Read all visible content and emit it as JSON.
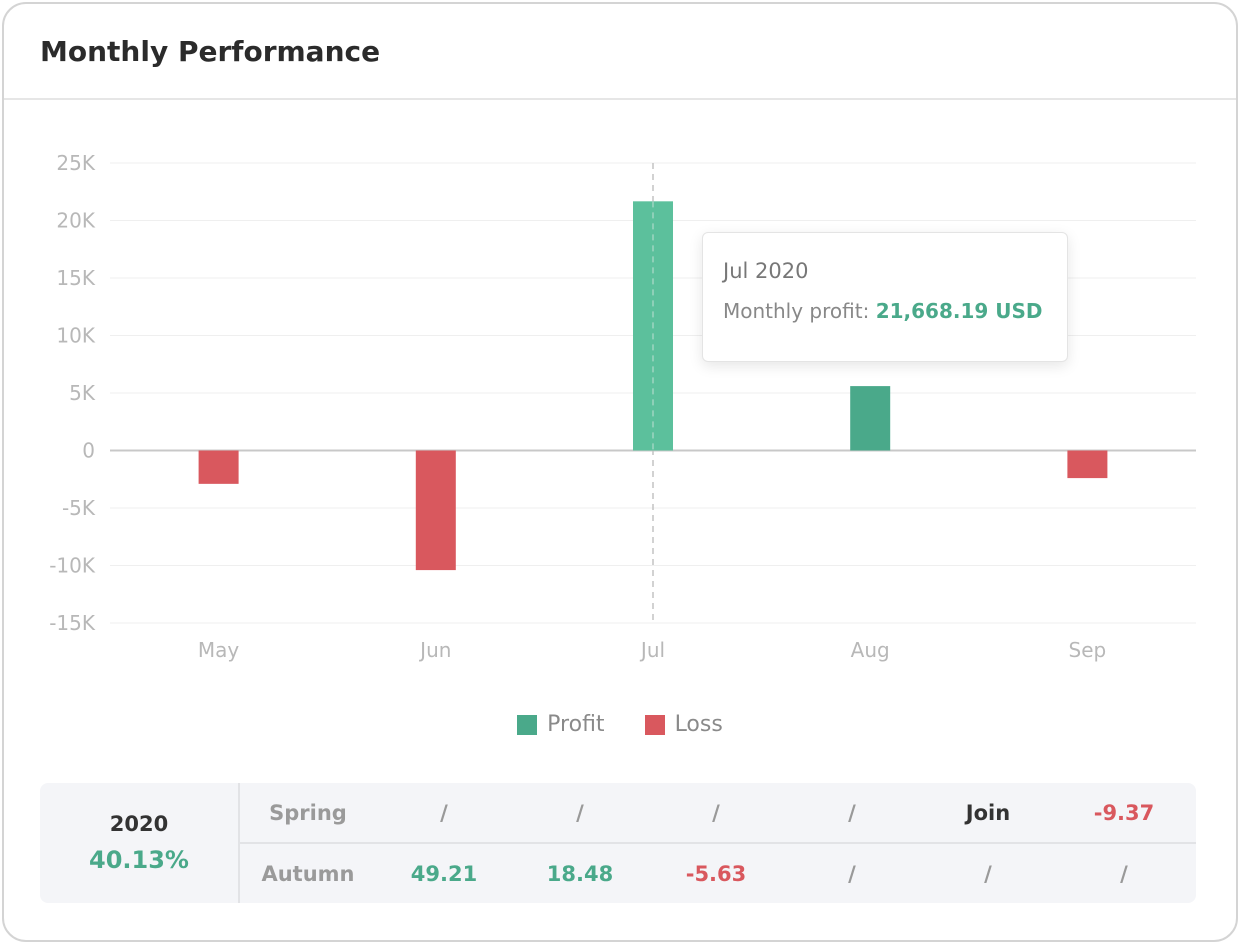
{
  "header": {
    "title": "Monthly Performance"
  },
  "colors": {
    "profit": "#4aa98a",
    "loss": "#d9585e"
  },
  "chart_data": {
    "type": "bar",
    "categories": [
      "May",
      "Jun",
      "Jul",
      "Aug",
      "Sep"
    ],
    "values": [
      -2900,
      -10400,
      21668.19,
      5600,
      -2400
    ],
    "ylim": [
      -15000,
      25000
    ],
    "yticks": [
      25000,
      20000,
      15000,
      10000,
      5000,
      0,
      -5000,
      -10000,
      -15000
    ],
    "ytick_labels": [
      "25K",
      "20K",
      "15K",
      "10K",
      "5K",
      "0",
      "-5K",
      "-10K",
      "-15K"
    ],
    "grid": true,
    "highlighted_category": "Jul",
    "legend": [
      {
        "name": "Profit",
        "color": "#4aa98a"
      },
      {
        "name": "Loss",
        "color": "#d9585e"
      }
    ]
  },
  "tooltip": {
    "title": "Jul 2020",
    "label": "Monthly profit:",
    "value": "21,668.19 USD"
  },
  "summary": {
    "year": "2020",
    "total": "40.13%",
    "rows": [
      {
        "season": "Spring",
        "cells": [
          {
            "text": "/",
            "tone": "muted"
          },
          {
            "text": "/",
            "tone": "muted"
          },
          {
            "text": "/",
            "tone": "muted"
          },
          {
            "text": "/",
            "tone": "muted"
          },
          {
            "text": "Join",
            "tone": "join"
          },
          {
            "text": "-9.37",
            "tone": "neg"
          }
        ]
      },
      {
        "season": "Autumn",
        "cells": [
          {
            "text": "49.21",
            "tone": "pos"
          },
          {
            "text": "18.48",
            "tone": "pos"
          },
          {
            "text": "-5.63",
            "tone": "neg"
          },
          {
            "text": "/",
            "tone": "muted"
          },
          {
            "text": "/",
            "tone": "muted"
          },
          {
            "text": "/",
            "tone": "muted"
          }
        ]
      }
    ]
  }
}
